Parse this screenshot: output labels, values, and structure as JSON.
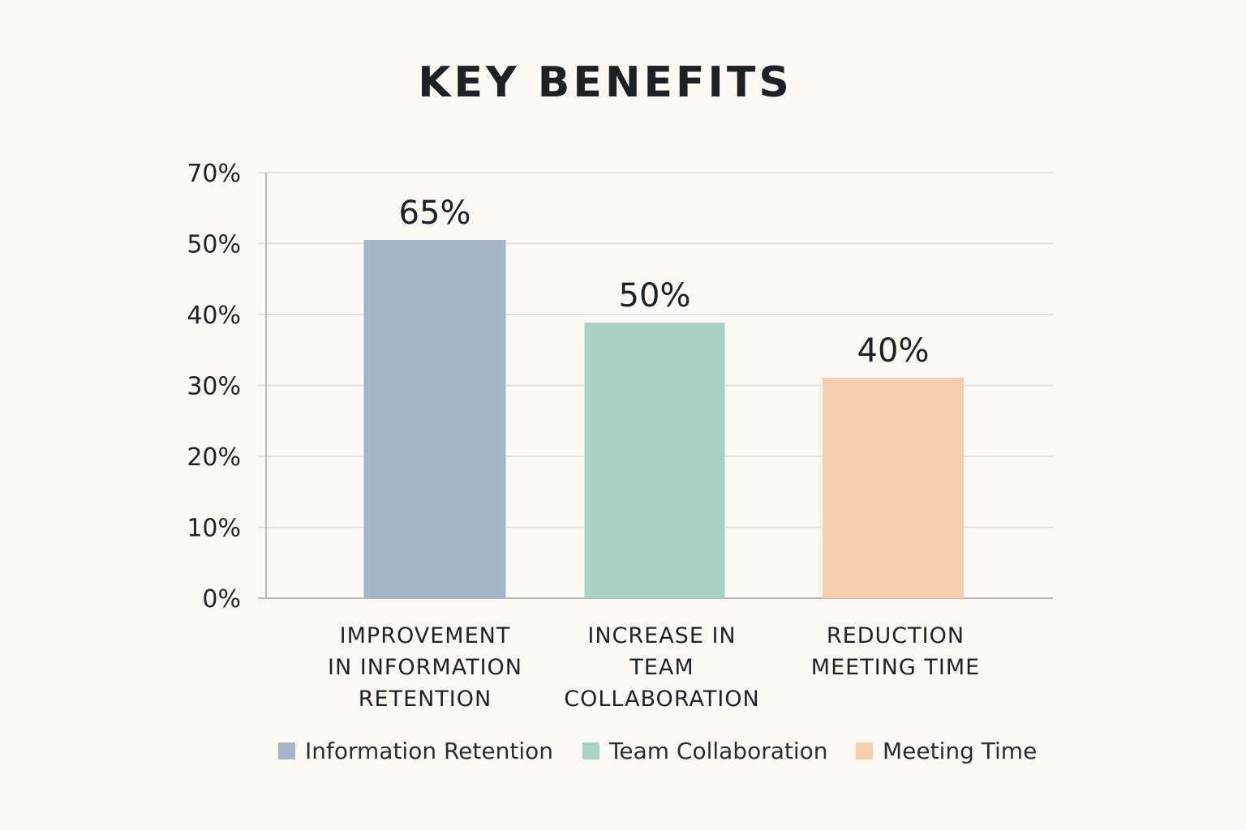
{
  "chart_data": {
    "type": "bar",
    "title": "KEY BENEFITS",
    "categories": [
      "IMPROVEMENT\nIN INFORMATION\nRETENTION",
      "INCREASE IN\nTEAM\nCOLLABORATION",
      "REDUCTION\nMEETING TIME"
    ],
    "values": [
      65,
      50,
      40
    ],
    "data_labels": [
      "65%",
      "50%",
      "40%"
    ],
    "y_ticks": [
      "0%",
      "10%",
      "20%",
      "30%",
      "40%",
      "50%",
      "70%"
    ],
    "grid": true,
    "legend_position": "bottom",
    "series": [
      {
        "name": "Information Retention",
        "color": "#a7b5ca"
      },
      {
        "name": "Team Collaboration",
        "color": "#a9d1c4"
      },
      {
        "name": "Meeting Time",
        "color": "#f5cfaf"
      }
    ],
    "xlabel": "",
    "ylabel": ""
  }
}
